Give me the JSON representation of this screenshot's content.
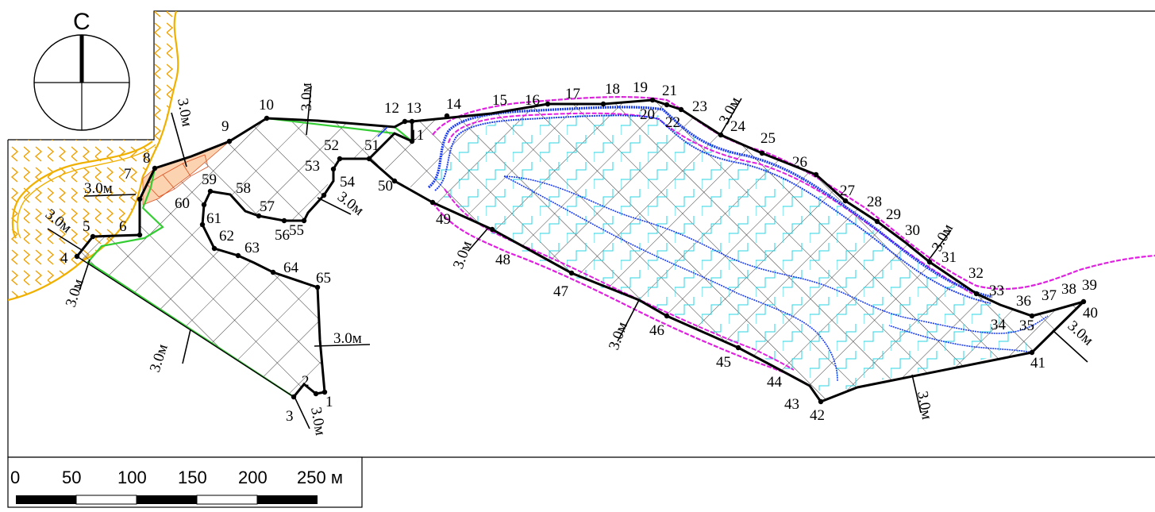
{
  "north_arrow": {
    "label": "С"
  },
  "scale_bar": {
    "ticks": [
      "0",
      "50",
      "100",
      "150",
      "200",
      "250 м"
    ]
  },
  "width_label": "3.0м",
  "width_label_alt": "3.0м",
  "boundary_points": [
    "1",
    "2",
    "3",
    "4",
    "5",
    "6",
    "7",
    "8",
    "9",
    "10",
    "11",
    "12",
    "13",
    "14",
    "15",
    "16",
    "17",
    "18",
    "19",
    "20",
    "21",
    "22",
    "23",
    "24",
    "25",
    "26",
    "27",
    "28",
    "29",
    "30",
    "31",
    "32",
    "33",
    "34",
    "35",
    "36",
    "37",
    "38",
    "39",
    "40",
    "41",
    "42",
    "43",
    "44",
    "45",
    "46",
    "47",
    "48",
    "49",
    "50",
    "51",
    "52",
    "53",
    "54",
    "55",
    "56",
    "57",
    "58",
    "59",
    "60",
    "61",
    "62",
    "63",
    "64",
    "65"
  ],
  "colors": {
    "boundary": "#000000",
    "hatch": "#333333",
    "water_line": "#1a3cf0",
    "bank_line": "#e020e0",
    "marsh": "#29d4e0",
    "green_line": "#33cc33",
    "sand_zigzag": "#f0a000",
    "orange_fill": "#e05020"
  }
}
